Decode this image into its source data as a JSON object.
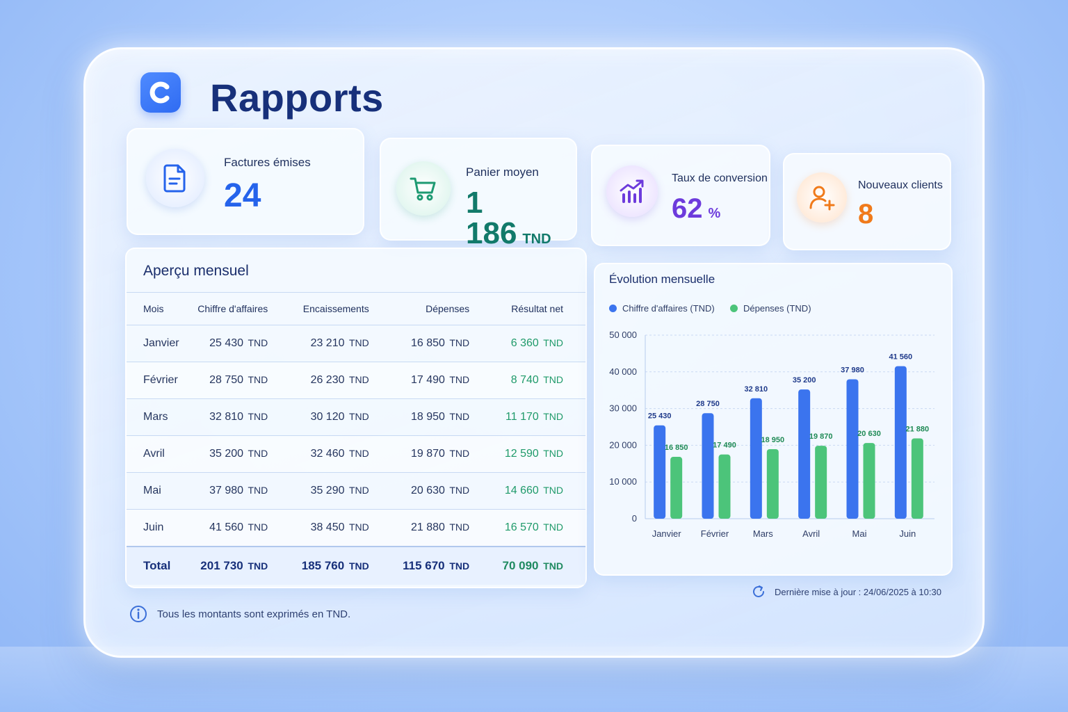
{
  "header": {
    "title": "Rapports",
    "logo_letter": "C"
  },
  "kpis": [
    {
      "label": "Factures émises",
      "value": "24",
      "unit": "",
      "icon": "document-icon",
      "color": "#2563eb"
    },
    {
      "label": "Panier moyen",
      "value": "1 186",
      "unit": "TND",
      "icon": "cart-icon",
      "color": "#127a6a"
    },
    {
      "label": "Taux de conversion",
      "value": "62",
      "unit": "%",
      "icon": "trend-chart-icon",
      "color": "#6d3bdc"
    },
    {
      "label": "Nouveaux clients",
      "value": "8",
      "unit": "",
      "icon": "add-user-icon",
      "color": "#f07a1a"
    }
  ],
  "table": {
    "title": "Aperçu mensuel",
    "columns": [
      "Mois",
      "Chiffre d'affaires",
      "Encaissements",
      "Dépenses",
      "Résultat net"
    ],
    "unit": "TND",
    "rows": [
      {
        "month": "Janvier",
        "ca": "25 430",
        "enc": "23 210",
        "dep": "16 850",
        "net": "6 360"
      },
      {
        "month": "Février",
        "ca": "28 750",
        "enc": "26 230",
        "dep": "17 490",
        "net": "8 740"
      },
      {
        "month": "Mars",
        "ca": "32 810",
        "enc": "30 120",
        "dep": "18 950",
        "net": "11 170"
      },
      {
        "month": "Avril",
        "ca": "35 200",
        "enc": "32 460",
        "dep": "19 870",
        "net": "12 590"
      },
      {
        "month": "Mai",
        "ca": "37 980",
        "enc": "35 290",
        "dep": "20 630",
        "net": "14 660"
      },
      {
        "month": "Juin",
        "ca": "41 560",
        "enc": "38 450",
        "dep": "21 880",
        "net": "16 570"
      }
    ],
    "total": {
      "month": "Total",
      "ca": "201 730",
      "enc": "185 760",
      "dep": "115 670",
      "net": "70 090"
    }
  },
  "chart_data": {
    "type": "bar",
    "title": "Évolution mensuelle",
    "categories": [
      "Janvier",
      "Février",
      "Mars",
      "Avril",
      "Mai",
      "Juin"
    ],
    "series": [
      {
        "name": "Chiffre d'affaires (TND)",
        "color": "#3b74ee",
        "values": [
          25430,
          28750,
          32810,
          35200,
          37980,
          41560
        ],
        "labels": [
          "25 430",
          "28 750",
          "32 810",
          "35 200",
          "37 980",
          "41 560"
        ]
      },
      {
        "name": "Dépenses (TND)",
        "color": "#4cc47a",
        "values": [
          16850,
          17490,
          18950,
          19870,
          20630,
          21880
        ],
        "labels": [
          "16 850",
          "17 490",
          "18 950",
          "19 870",
          "20 630",
          "21 880"
        ]
      }
    ],
    "y_ticks": [
      "0",
      "10 000",
      "20 000",
      "30 000",
      "40 000",
      "50 000"
    ],
    "ylim": [
      0,
      50000
    ],
    "grid": true,
    "legend": "top-left"
  },
  "footer": {
    "note": "Tous les montants sont exprimés en TND.",
    "updated": "Dernière mise à jour : 24/06/2025 à 10:30"
  }
}
